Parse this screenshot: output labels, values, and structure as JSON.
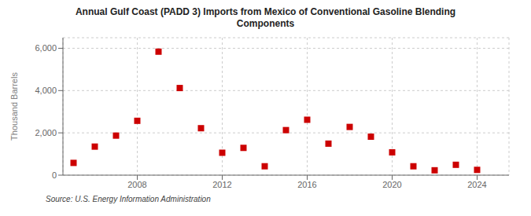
{
  "chart_data": {
    "type": "scatter",
    "title": "Annual Gulf Coast (PADD 3) Imports from Mexico of Conventional Gasoline Blending\nComponents",
    "ylabel": "Thousand Barrels",
    "annotations": [
      "Source: U.S. Energy Information Administration"
    ],
    "x": [
      2005,
      2006,
      2007,
      2008,
      2009,
      2010,
      2011,
      2012,
      2013,
      2014,
      2015,
      2016,
      2017,
      2018,
      2019,
      2020,
      2021,
      2022,
      2023,
      2024
    ],
    "values": [
      580,
      1350,
      1870,
      2570,
      5840,
      4120,
      2220,
      1060,
      1290,
      420,
      2130,
      2620,
      1490,
      2280,
      1820,
      1080,
      420,
      230,
      490,
      250
    ],
    "color": "#cc0000",
    "marker": "square",
    "xlim": [
      2004.5,
      2025.5
    ],
    "ylim": [
      0,
      6500
    ],
    "xticks": [
      2008,
      2012,
      2016,
      2020,
      2024
    ],
    "yticks": [
      0,
      {
        "value": 2000,
        "label": "2,000"
      },
      {
        "value": 4000,
        "label": "4,000"
      },
      {
        "value": 6000,
        "label": "6,000"
      }
    ],
    "grid": true
  }
}
